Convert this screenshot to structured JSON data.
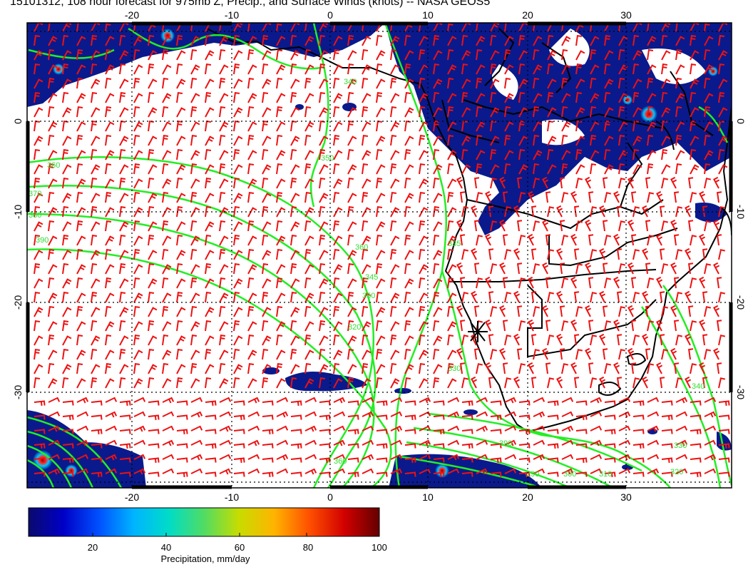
{
  "title": "15101312, 108 hour forecast for 975mb Z, Precip., and Surface Winds (knots) -- NASA GEOS5",
  "map": {
    "lon_ticks": [
      "-20",
      "-10",
      "0",
      "10",
      "20",
      "30"
    ],
    "lat_ticks": [
      "0",
      "-10",
      "-20",
      "-30"
    ],
    "contour_labels": [
      "340",
      "350",
      "360",
      "370",
      "380",
      "390",
      "335",
      "345",
      "360",
      "350",
      "320",
      "330",
      "310",
      "300",
      "290",
      "330",
      "340",
      "320",
      "360",
      "390"
    ],
    "colors": {
      "contour": "#22ee22",
      "wind_barb": "#ee1111",
      "precip_low": "#0a1a8c",
      "coast": "#000000",
      "grid": "#000000"
    }
  },
  "colorbar": {
    "ticks": [
      "20",
      "40",
      "60",
      "80",
      "100"
    ],
    "label": "Precipitation, mm/day",
    "range": [
      0,
      100
    ],
    "gradient": [
      "#0a0a6e",
      "#0000c8",
      "#0050ff",
      "#00b4ff",
      "#00dcc8",
      "#50dc64",
      "#c8dc00",
      "#ffb400",
      "#ff5000",
      "#d20000",
      "#640000"
    ]
  }
}
